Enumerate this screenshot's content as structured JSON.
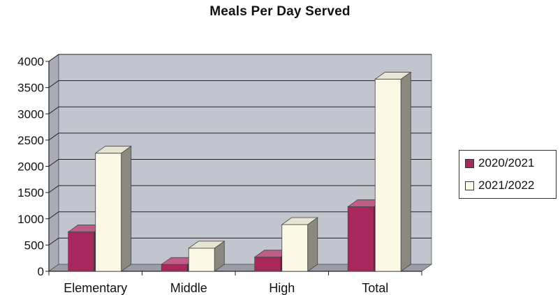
{
  "chart_data": {
    "type": "bar",
    "title": "Meals Per Day Served",
    "xlabel": "",
    "ylabel": "",
    "categories": [
      "Elementary",
      "Middle",
      "High",
      "Total"
    ],
    "series": [
      {
        "name": "2020/2021",
        "color": "#a8285e",
        "values": [
          750,
          130,
          270,
          1230
        ]
      },
      {
        "name": "2021/2022",
        "color": "#fbf8e6",
        "values": [
          2250,
          440,
          890,
          3660
        ]
      }
    ],
    "ylim": [
      0,
      4000
    ],
    "yticks": [
      "0",
      "500",
      "1000",
      "1500",
      "2000",
      "2500",
      "3000",
      "3500",
      "4000"
    ],
    "grid": true,
    "legend_position": "right",
    "style": "3d-column",
    "wall_color": "#c2c4ce",
    "floor_color": "#9a9ca6"
  }
}
